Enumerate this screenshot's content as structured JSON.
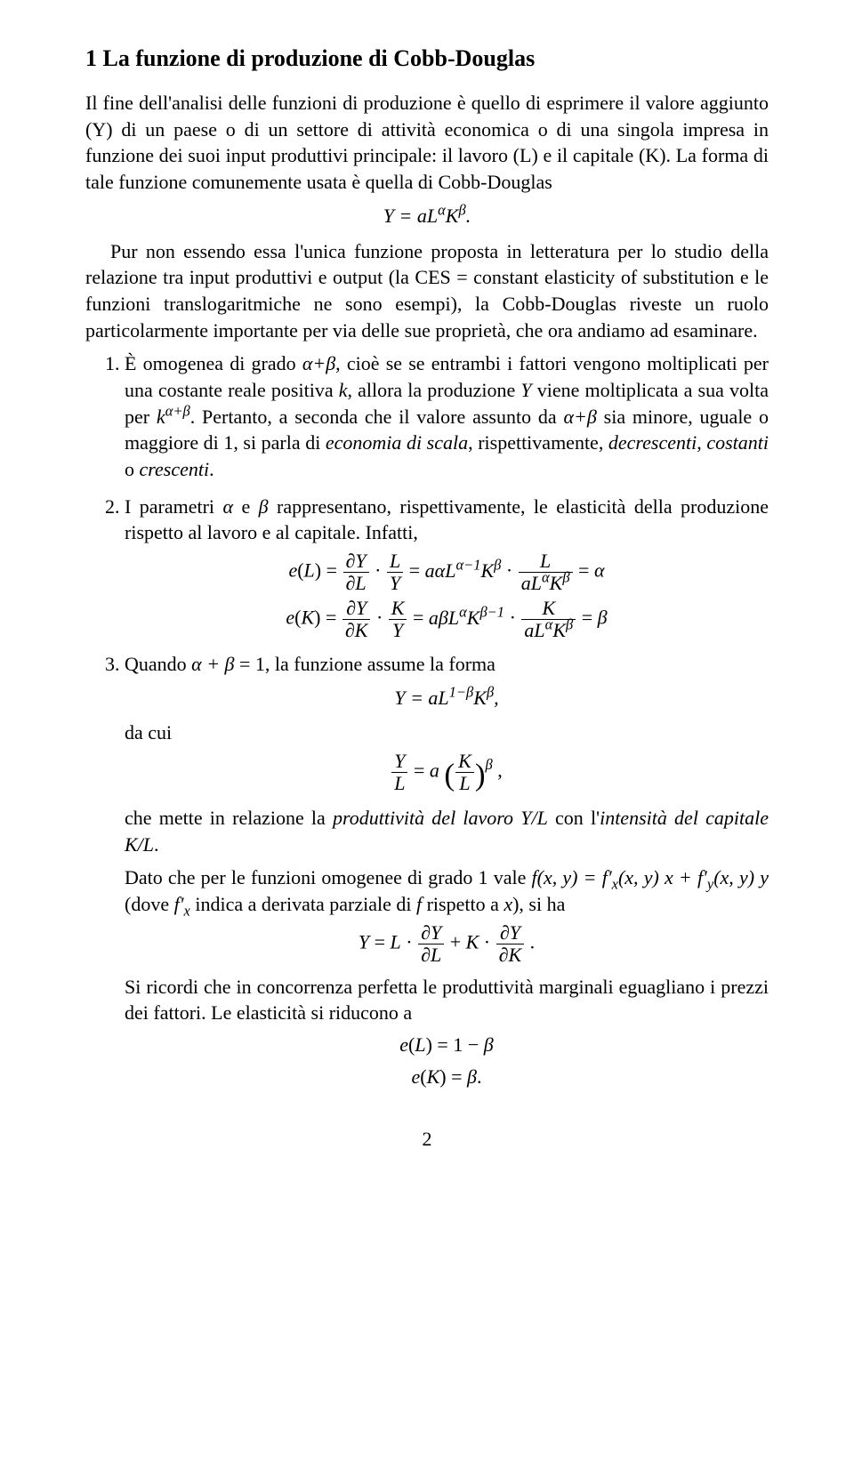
{
  "title": "1   La funzione di produzione di Cobb-Douglas",
  "intro1": "Il fine dell'analisi delle funzioni di produzione è quello di esprimere il valore aggiunto (Y) di un paese o di un settore di attività economica o di una singola impresa in funzione dei suoi input produttivi principale: il lavoro (L) e il capitale (K). La forma di tale funzione comunemente usata è quella di Cobb-Douglas",
  "eq1_html": "Y = aL<sup>α</sup>K<sup>β</sup>.",
  "intro2": "Pur non essendo essa l'unica funzione proposta in letteratura per lo studio della relazione tra input produttivi e output (la CES = constant elasticity of substitution e le funzioni translogaritmiche ne sono esempi), la Cobb-Douglas riveste un ruolo particolarmente importante per via delle sue proprietà, che ora andiamo ad esaminare.",
  "item1_html": "È omogenea di grado <span class='math'>α+β</span>, cioè se se entrambi i fattori vengono moltiplicati per una costante reale positiva <span class='math'>k</span>, allora la produzione <span class='math'>Y</span> viene moltiplicata a sua volta per <span class='math'>k<sup>α+β</sup></span>. Pertanto, a seconda che il valore assunto da <span class='math'>α+β</span> sia minore, uguale o maggiore di 1, si parla di <i>economia di scala</i>, rispettivamente, <i>decrescenti</i>, <i>costanti</i> o <i>crescenti</i>.",
  "item2_intro_html": "I parametri <span class='math'>α</span> e <span class='math'>β</span> rappresentano, rispettivamente, le elasticità della produzione rispetto al lavoro e al capitale. Infatti,",
  "item2_eq1_html": "<span class='math'>e</span>(<span class='math'>L</span>) = <span class='frac'><span class='num'>∂Y</span><span class='den'>∂L</span></span> · <span class='frac'><span class='num'>L</span><span class='den'>Y</span></span> = <span class='math'>aαL<sup>α−1</sup>K<sup>β</sup></span> · <span class='frac'><span class='num'>L</span><span class='den'>aL<sup>α</sup>K<sup>β</sup></span></span> = <span class='math'>α</span>",
  "item2_eq2_html": "<span class='math'>e</span>(<span class='math'>K</span>) = <span class='frac'><span class='num'>∂Y</span><span class='den'>∂K</span></span> · <span class='frac'><span class='num'>K</span><span class='den'>Y</span></span> = <span class='math'>aβL<sup>α</sup>K<sup>β−1</sup></span> · <span class='frac'><span class='num'>K</span><span class='den'>aL<sup>α</sup>K<sup>β</sup></span></span> = <span class='math'>β</span>",
  "item3_intro_html": "Quando <span class='math'>α + β</span> = 1, la funzione assume la forma",
  "item3_eq1_html": "Y = aL<sup>1−β</sup>K<sup>β</sup>,",
  "item3_dacui": "da cui",
  "item3_eq2_html": "<span class='frac'><span class='num'>Y</span><span class='den'>L</span></span> = <span class='math'>a</span> <span class='paren-lg'>(</span><span class='frac'><span class='num'>K</span><span class='den'>L</span></span><span class='paren-lg'>)</span><sup style='font-style:italic'>β</sup> ,",
  "item3_p2_html": "che mette in relazione la <i>produttività del lavoro</i> <span class='math'>Y/L</span> con l'<i>intensità del capitale</i> <span class='math'>K/L</span>.",
  "item3_p3_html": "Dato che per le funzioni omogenee di grado 1 vale <span class='math'>f(x, y) = f′<sub>x</sub>(x, y) x + f′<sub>y</sub>(x, y) y</span> (dove <span class='math'>f′<sub>x</sub></span> indica a derivata parziale di <span class='math'>f</span> rispetto a <span class='math'>x</span>), si ha",
  "item3_eq3_html": "<span class='math'>Y</span> = <span class='math'>L</span> · <span class='frac'><span class='num'>∂Y</span><span class='den'>∂L</span></span> + <span class='math'>K</span> · <span class='frac'><span class='num'>∂Y</span><span class='den'>∂K</span></span> .",
  "item3_p4": "Si ricordi che in concorrenza perfetta le produttività marginali eguagliano i prezzi dei fattori. Le elasticità si riducono a",
  "item3_eq4a_html": "<span class='math'>e</span>(<span class='math'>L</span>) = 1 − <span class='math'>β</span>",
  "item3_eq4b_html": "<span class='math'>e</span>(<span class='math'>K</span>) = <span class='math'>β</span>.",
  "page_number": "2"
}
